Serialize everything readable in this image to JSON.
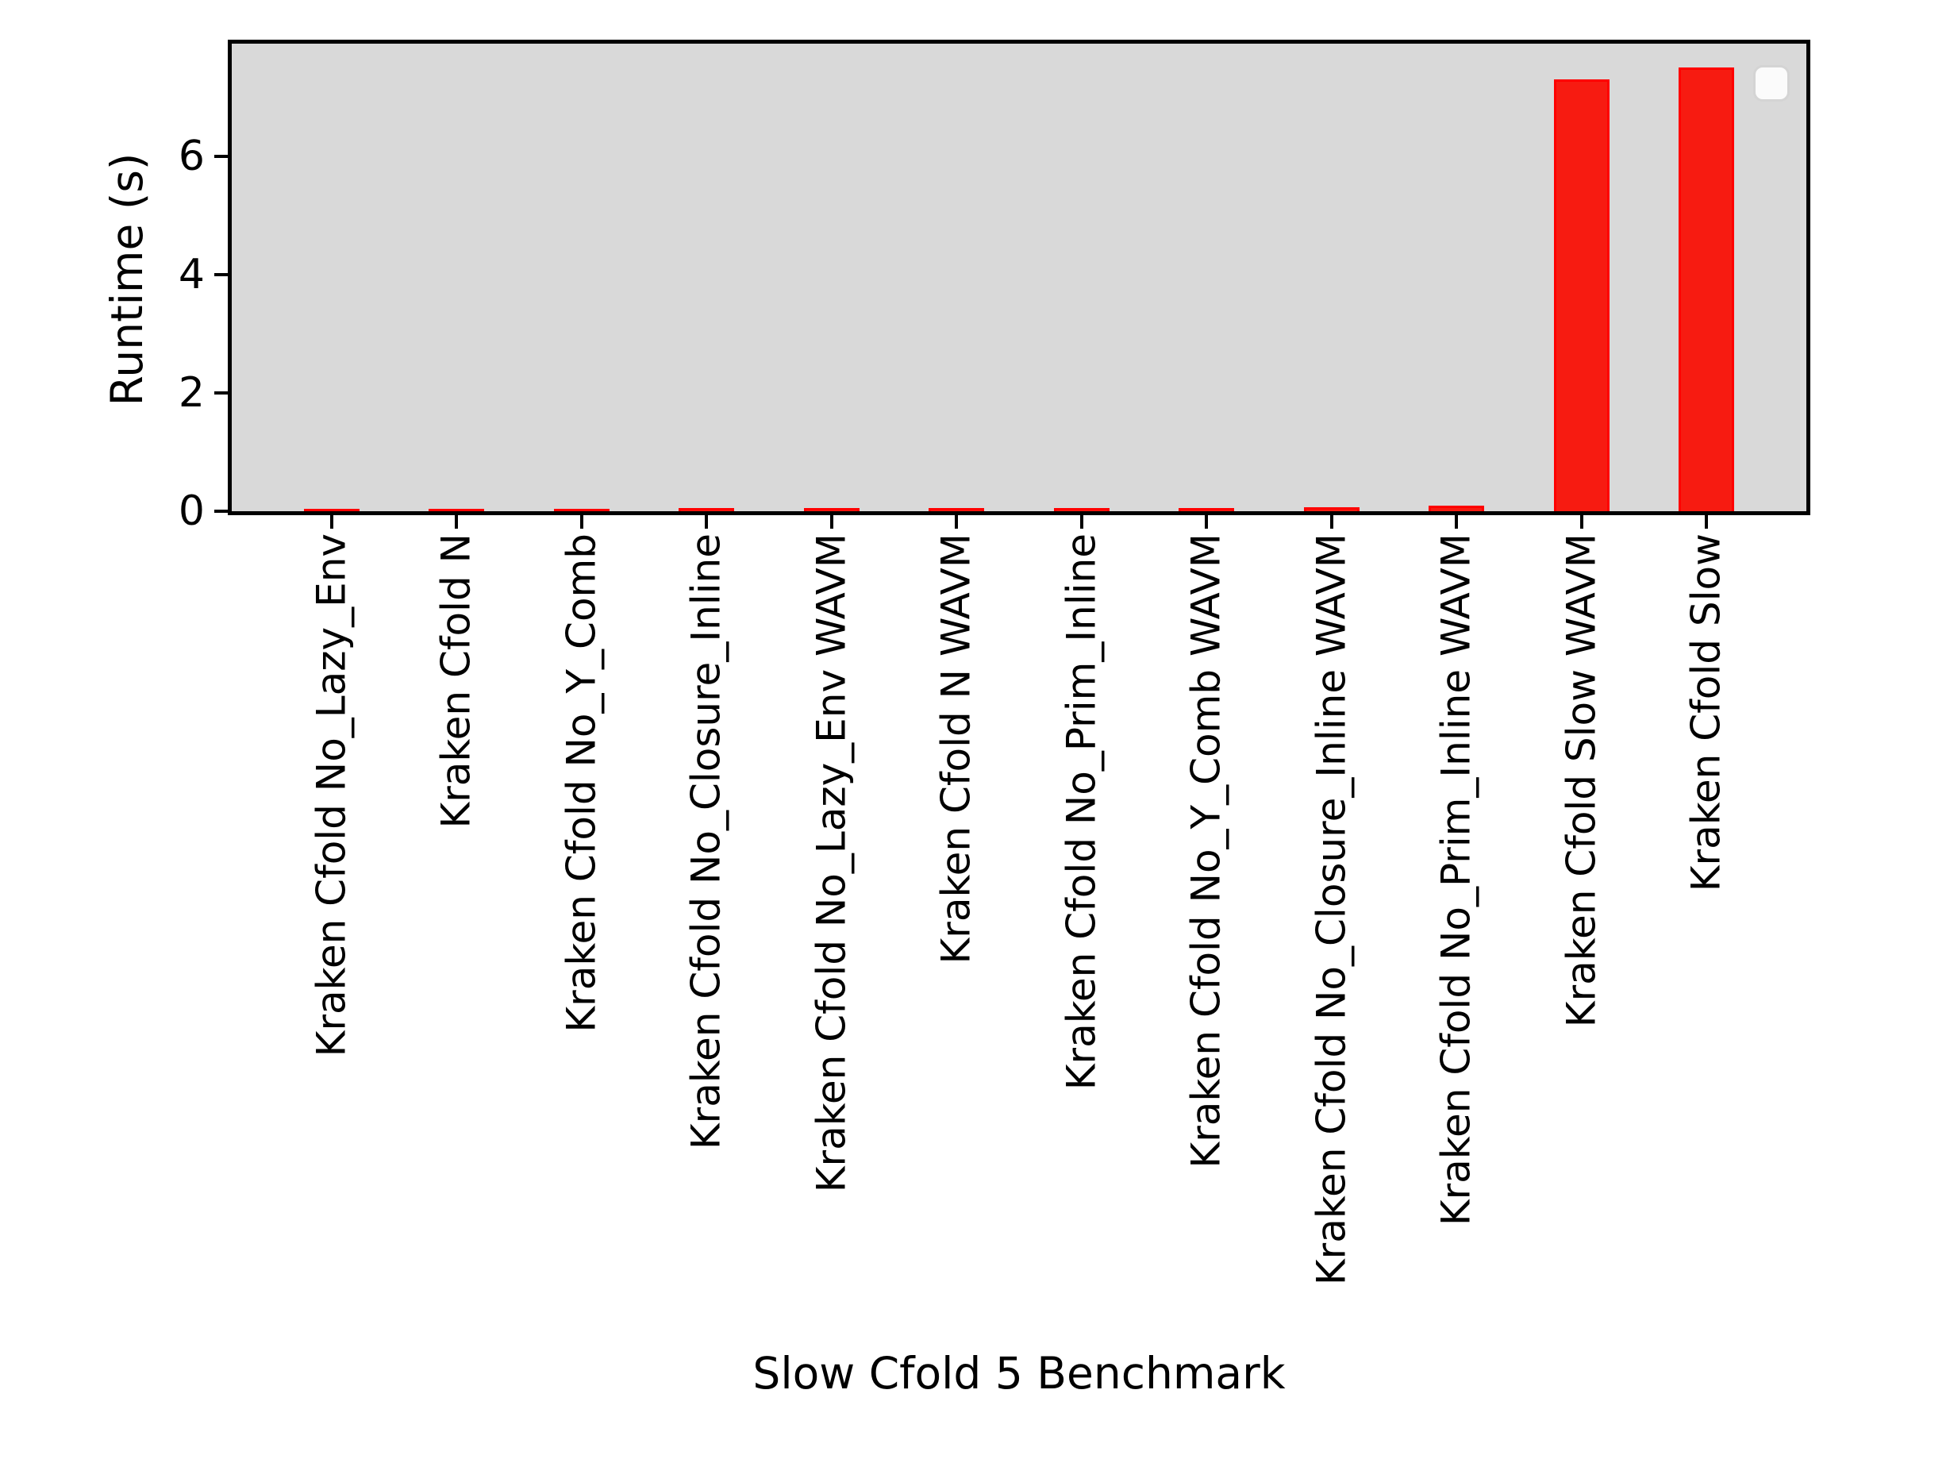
{
  "chart_data": {
    "type": "bar",
    "title": "",
    "xlabel": "Slow Cfold 5 Benchmark",
    "ylabel": "Runtime (s)",
    "categories": [
      "Kraken Cfold No_Lazy_Env",
      "Kraken Cfold N",
      "Kraken Cfold No_Y_Comb",
      "Kraken Cfold No_Closure_Inline",
      "Kraken Cfold No_Lazy_Env WAVM",
      "Kraken Cfold N WAVM",
      "Kraken Cfold No_Prim_Inline",
      "Kraken Cfold No_Y_Comb WAVM",
      "Kraken Cfold No_Closure_Inline WAVM",
      "Kraken Cfold No_Prim_Inline WAVM",
      "Kraken Cfold Slow WAVM",
      "Kraken Cfold Slow"
    ],
    "values": [
      0.04,
      0.04,
      0.04,
      0.05,
      0.05,
      0.05,
      0.05,
      0.05,
      0.07,
      0.09,
      7.3,
      7.5
    ],
    "yticks": [
      0,
      2,
      4,
      6
    ],
    "ylim": [
      0,
      7.9
    ],
    "grid": false,
    "legend": {
      "visible": true,
      "position": "upper right",
      "entries": []
    },
    "colors": {
      "bar_fill": "#f71b11",
      "bar_edge": "#ff0000",
      "plot_background": "#d9d9d9",
      "spine": "#000000",
      "figure_background": "#ffffff"
    }
  }
}
